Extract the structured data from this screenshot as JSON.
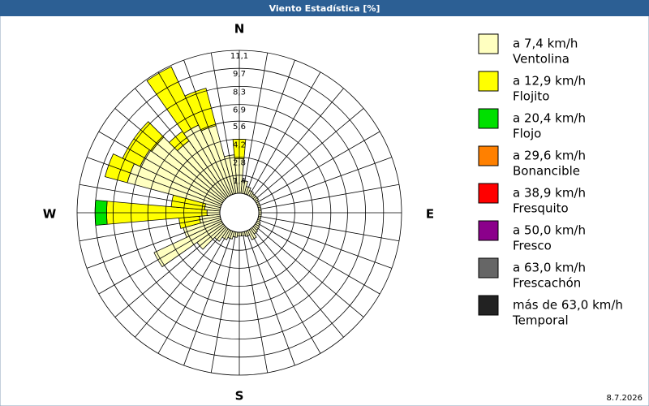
{
  "chart_data": {
    "type": "wind-rose",
    "title": "Viento Estadística [%]",
    "date": "8.7.2026",
    "compass_labels": [
      "N",
      "E",
      "S",
      "W"
    ],
    "rlim": [
      0,
      11.1
    ],
    "rticks": [
      {
        "value": 1.4,
        "label": "1,4"
      },
      {
        "value": 2.8,
        "label": "2,8"
      },
      {
        "value": 4.2,
        "label": "4,2"
      },
      {
        "value": 5.6,
        "label": "5,6"
      },
      {
        "value": 6.9,
        "label": "6,9"
      },
      {
        "value": 8.3,
        "label": "8,3"
      },
      {
        "value": 9.7,
        "label": "9,7"
      },
      {
        "value": 11.1,
        "label": "11,1"
      }
    ],
    "series": [
      {
        "name": "a 7,4 km/h",
        "description": "Ventolina",
        "color": "#ffffc0",
        "values": [
          2.7,
          1.0,
          0.6,
          0.4,
          0.3,
          0.3,
          0.2,
          0.2,
          0.2,
          0.2,
          0.2,
          0.2,
          0.3,
          0.4,
          0.5,
          0.8,
          0.4,
          0.3,
          0.3,
          0.4,
          0.6,
          0.8,
          1.2,
          2.5,
          5.8,
          3.0,
          1.6,
          1.0,
          1.2,
          7.5,
          7.0,
          6.8,
          5.3,
          6.0,
          5.5,
          3.0
        ]
      },
      {
        "name": "a 12,9 km/h",
        "description": "Flojito",
        "color": "#ffff00",
        "values": [
          1.5,
          0,
          0,
          0,
          0,
          0,
          0,
          0,
          0,
          0,
          0,
          0,
          0,
          0,
          0,
          0,
          0,
          0,
          0,
          0,
          0,
          0,
          0,
          0,
          0,
          0,
          1.6,
          7.8,
          2.6,
          1.8,
          1.5,
          1.7,
          0.9,
          5.0,
          3.0,
          0
        ]
      },
      {
        "name": "a 20,4 km/h",
        "description": "Flojo",
        "color": "#00e000",
        "values": [
          0,
          0,
          0,
          0,
          0,
          0,
          0,
          0,
          0,
          0,
          0,
          0,
          0,
          0,
          0,
          0,
          0,
          0,
          0,
          0,
          0,
          0,
          0,
          0,
          0,
          0,
          0,
          0.9,
          0,
          0,
          0,
          0,
          0,
          0,
          0,
          0
        ]
      },
      {
        "name": "a 29,6 km/h",
        "description": "Bonancible",
        "color": "#ff8000",
        "values": [
          0,
          0,
          0,
          0,
          0,
          0,
          0,
          0,
          0,
          0,
          0,
          0,
          0,
          0,
          0,
          0,
          0,
          0,
          0,
          0,
          0,
          0,
          0,
          0,
          0,
          0,
          0,
          0,
          0,
          0,
          0,
          0,
          0,
          0,
          0,
          0
        ]
      },
      {
        "name": "a 38,9 km/h",
        "description": "Fresquito",
        "color": "#ff0000",
        "values": [
          0,
          0,
          0,
          0,
          0,
          0,
          0,
          0,
          0,
          0,
          0,
          0,
          0,
          0,
          0,
          0,
          0,
          0,
          0,
          0,
          0,
          0,
          0,
          0,
          0,
          0,
          0,
          0,
          0,
          0,
          0,
          0,
          0,
          0,
          0,
          0
        ]
      },
      {
        "name": "a 50,0 km/h",
        "description": "Fresco",
        "color": "#8b008b",
        "values": [
          0,
          0,
          0,
          0,
          0,
          0,
          0,
          0,
          0,
          0,
          0,
          0,
          0,
          0,
          0,
          0,
          0,
          0,
          0,
          0,
          0,
          0,
          0,
          0,
          0,
          0,
          0,
          0,
          0,
          0,
          0,
          0,
          0,
          0,
          0,
          0
        ]
      },
      {
        "name": "a 63,0 km/h",
        "description": "Frescachón",
        "color": "#666666",
        "values": [
          0,
          0,
          0,
          0,
          0,
          0,
          0,
          0,
          0,
          0,
          0,
          0,
          0,
          0,
          0,
          0,
          0,
          0,
          0,
          0,
          0,
          0,
          0,
          0,
          0,
          0,
          0,
          0,
          0,
          0,
          0,
          0,
          0,
          0,
          0,
          0
        ]
      },
      {
        "name": "más de 63,0 km/h",
        "description": "Temporal",
        "color": "#222222",
        "values": [
          0,
          0,
          0,
          0,
          0,
          0,
          0,
          0,
          0,
          0,
          0,
          0,
          0,
          0,
          0,
          0,
          0,
          0,
          0,
          0,
          0,
          0,
          0,
          0,
          0,
          0,
          0,
          0,
          0,
          0,
          0,
          0,
          0,
          0,
          0,
          0
        ]
      }
    ]
  }
}
